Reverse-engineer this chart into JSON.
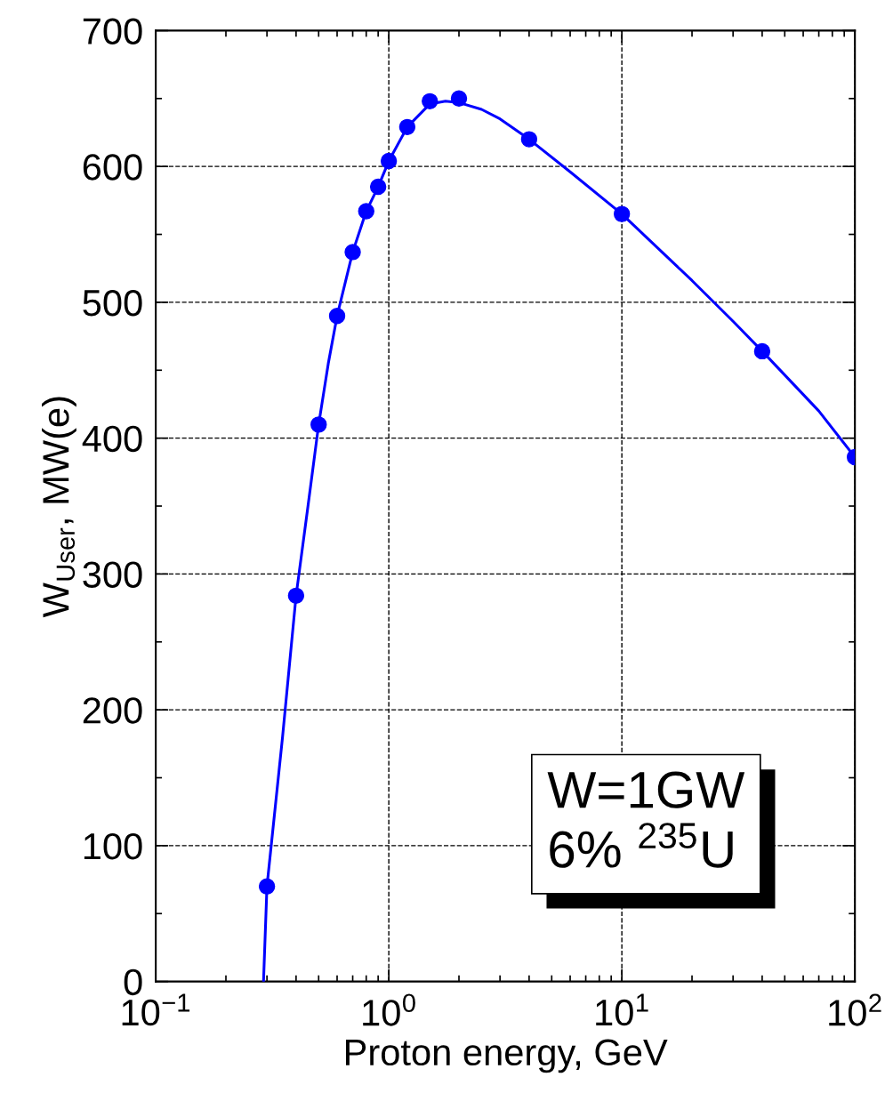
{
  "chart_data": {
    "type": "line",
    "xlabel": "Proton energy, GeV",
    "ylabel": "W$_{User}$, MW(e)",
    "log": "x",
    "xlim": [
      0.1,
      100
    ],
    "ylim": [
      0,
      700
    ],
    "xticks": [
      {
        "value": 0.1,
        "label": "10$^{−1}$"
      },
      {
        "value": 1,
        "label": "10$^{0}$"
      },
      {
        "value": 10,
        "label": "10$^{1}$"
      },
      {
        "value": 100,
        "label": "10$^{2}$"
      }
    ],
    "yticks": [
      0,
      100,
      200,
      300,
      400,
      500,
      600,
      700
    ],
    "grid": true,
    "series": [
      {
        "type": "scatter",
        "marker": "circle",
        "color": "#0000ff",
        "x": [
          0.3,
          0.4,
          0.5,
          0.6,
          0.7,
          0.8,
          0.9,
          1.0,
          1.2,
          1.5,
          2,
          4,
          10,
          40,
          100
        ],
        "values": [
          70,
          284,
          410,
          490,
          537,
          567,
          585,
          604,
          629,
          648,
          650,
          620,
          565,
          464,
          386
        ]
      },
      {
        "color": "#0000ff",
        "line_style": "solid",
        "x": [
          0.29,
          0.3,
          0.35,
          0.4,
          0.45,
          0.5,
          0.55,
          0.6,
          0.7,
          0.8,
          0.9,
          1,
          1.2,
          1.5,
          1.75,
          2,
          2.5,
          3,
          4,
          6,
          10,
          20,
          30,
          40,
          70,
          100
        ],
        "values": [
          0,
          70,
          180,
          284,
          350,
          410,
          455,
          490,
          537,
          567,
          585,
          604,
          629,
          646,
          648,
          647,
          642,
          635,
          620,
          596,
          565,
          516,
          486,
          464,
          420,
          386
        ]
      }
    ],
    "annotations": [
      "W=1GW\n6% $^{235}$U"
    ]
  }
}
